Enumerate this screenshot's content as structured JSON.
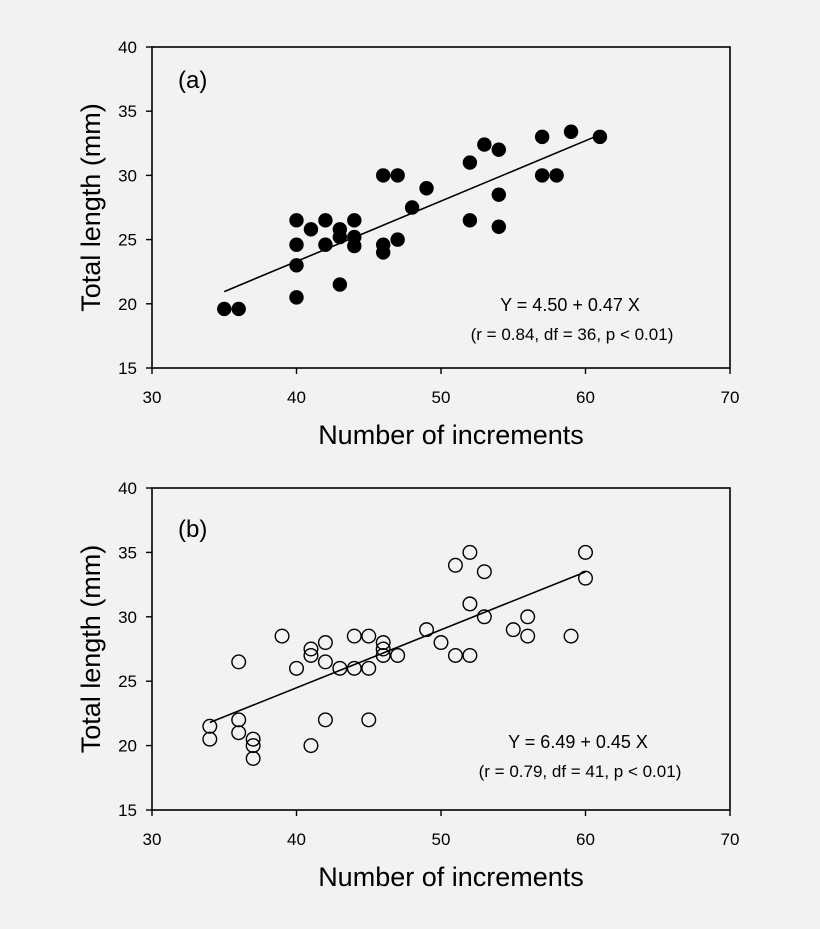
{
  "chart_data": [
    {
      "type": "scatter",
      "panel_label": "(a)",
      "xlabel": "Number of increments",
      "ylabel": "Total length (mm)",
      "xlim": [
        30,
        70
      ],
      "ylim": [
        15,
        40
      ],
      "xticks": [
        30,
        40,
        50,
        60,
        70
      ],
      "yticks": [
        15,
        20,
        25,
        30,
        35,
        40
      ],
      "marker": "filled",
      "grid": false,
      "equation": "Y = 4.50 + 0.47 X",
      "stats": "(r = 0.84, df = 36, p < 0.01)",
      "regression": {
        "intercept": 4.5,
        "slope": 0.47,
        "x_range": [
          35,
          61
        ]
      },
      "points": [
        [
          35,
          19.6
        ],
        [
          36,
          19.6
        ],
        [
          40,
          20.5
        ],
        [
          40,
          23.0
        ],
        [
          40,
          24.6
        ],
        [
          40,
          26.5
        ],
        [
          41,
          25.8
        ],
        [
          42,
          24.6
        ],
        [
          42,
          26.5
        ],
        [
          43,
          21.5
        ],
        [
          43,
          25.2
        ],
        [
          43,
          25.8
        ],
        [
          44,
          24.5
        ],
        [
          44,
          25.2
        ],
        [
          44,
          26.5
        ],
        [
          46,
          24.0
        ],
        [
          46,
          24.6
        ],
        [
          46,
          30.0
        ],
        [
          47,
          25.0
        ],
        [
          47,
          30.0
        ],
        [
          48,
          27.5
        ],
        [
          49,
          29.0
        ],
        [
          52,
          26.5
        ],
        [
          52,
          31.0
        ],
        [
          53,
          32.4
        ],
        [
          54,
          26.0
        ],
        [
          54,
          28.5
        ],
        [
          54,
          32.0
        ],
        [
          57,
          30.0
        ],
        [
          57,
          33.0
        ],
        [
          58,
          30.0
        ],
        [
          59,
          33.4
        ],
        [
          61,
          33.0
        ]
      ]
    },
    {
      "type": "scatter",
      "panel_label": "(b)",
      "xlabel": "Number of increments",
      "ylabel": "Total length (mm)",
      "xlim": [
        30,
        70
      ],
      "ylim": [
        15,
        40
      ],
      "xticks": [
        30,
        40,
        50,
        60,
        70
      ],
      "yticks": [
        15,
        20,
        25,
        30,
        35,
        40
      ],
      "marker": "open",
      "grid": false,
      "equation": "Y = 6.49 + 0.45 X",
      "stats": "(r = 0.79, df = 41, p < 0.01)",
      "regression": {
        "intercept": 6.49,
        "slope": 0.45,
        "x_range": [
          34,
          60
        ]
      },
      "points": [
        [
          34,
          20.5
        ],
        [
          34,
          21.5
        ],
        [
          36,
          21.0
        ],
        [
          36,
          22.0
        ],
        [
          36,
          26.5
        ],
        [
          37,
          19.0
        ],
        [
          37,
          20.0
        ],
        [
          37,
          20.5
        ],
        [
          39,
          28.5
        ],
        [
          40,
          26.0
        ],
        [
          41,
          20.0
        ],
        [
          41,
          27.0
        ],
        [
          41,
          27.5
        ],
        [
          42,
          22.0
        ],
        [
          42,
          26.5
        ],
        [
          42,
          28.0
        ],
        [
          43,
          26.0
        ],
        [
          44,
          26.0
        ],
        [
          44,
          28.5
        ],
        [
          45,
          22.0
        ],
        [
          45,
          26.0
        ],
        [
          45,
          28.5
        ],
        [
          46,
          27.0
        ],
        [
          46,
          27.5
        ],
        [
          46,
          28.0
        ],
        [
          47,
          27.0
        ],
        [
          49,
          29.0
        ],
        [
          50,
          28.0
        ],
        [
          51,
          27.0
        ],
        [
          51,
          34.0
        ],
        [
          52,
          27.0
        ],
        [
          52,
          31.0
        ],
        [
          52,
          35.0
        ],
        [
          53,
          30.0
        ],
        [
          53,
          33.5
        ],
        [
          55,
          29.0
        ],
        [
          56,
          28.5
        ],
        [
          56,
          30.0
        ],
        [
          59,
          28.5
        ],
        [
          60,
          33.0
        ],
        [
          60,
          35.0
        ]
      ]
    }
  ]
}
